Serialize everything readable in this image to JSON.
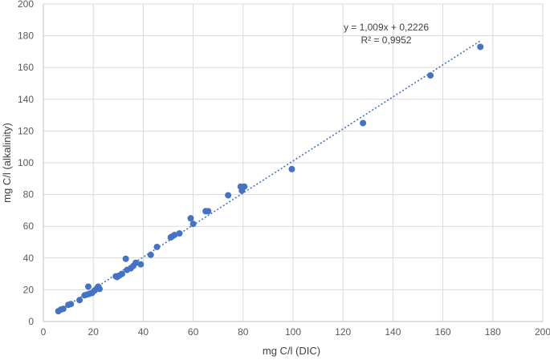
{
  "chart_data": {
    "type": "scatter",
    "title": "",
    "xlabel": "mg C/l (DIC)",
    "ylabel": "mg C/l (alkalinity)",
    "xlim": [
      0,
      200
    ],
    "ylim": [
      0,
      200
    ],
    "xticks": [
      0,
      20,
      40,
      60,
      80,
      100,
      120,
      140,
      160,
      180,
      200
    ],
    "yticks": [
      0,
      20,
      40,
      60,
      80,
      100,
      120,
      140,
      160,
      180,
      200
    ],
    "grid": true,
    "legend": "none",
    "series": [
      {
        "x": [
          6,
          7,
          8,
          10,
          11,
          14.5,
          16.5,
          17.5,
          18,
          18.5,
          19.5,
          20.5,
          21.5,
          22,
          22.5,
          29,
          29.5,
          30.5,
          31.5,
          33,
          33.5,
          35,
          36,
          37,
          39,
          43,
          45.5,
          51,
          51.5,
          52.5,
          54.5,
          59,
          60,
          65,
          66,
          74,
          79,
          79.5,
          80.5,
          99.5,
          128,
          155,
          175
        ],
        "y": [
          6.5,
          7.5,
          8,
          10.5,
          11,
          13.5,
          16.5,
          17,
          22,
          17.5,
          18,
          19.5,
          21,
          22,
          20.5,
          28.5,
          28,
          29,
          30,
          39.5,
          32.5,
          33.5,
          35,
          37,
          36,
          42,
          47,
          53,
          53.5,
          54.5,
          55.5,
          65,
          61.5,
          69.5,
          69.5,
          79.5,
          85,
          82.5,
          85,
          96,
          125,
          155,
          173
        ]
      }
    ],
    "trendline": {
      "slope": 1.009,
      "intercept": 0.2226,
      "x_range": [
        5,
        175
      ],
      "equation": "y = 1,009x + 0,2226",
      "r2": "R² = 0,9952"
    },
    "colors": {
      "points": "#4472c4",
      "trendline": "#4472c4",
      "grid": "#d9d9d9"
    }
  }
}
